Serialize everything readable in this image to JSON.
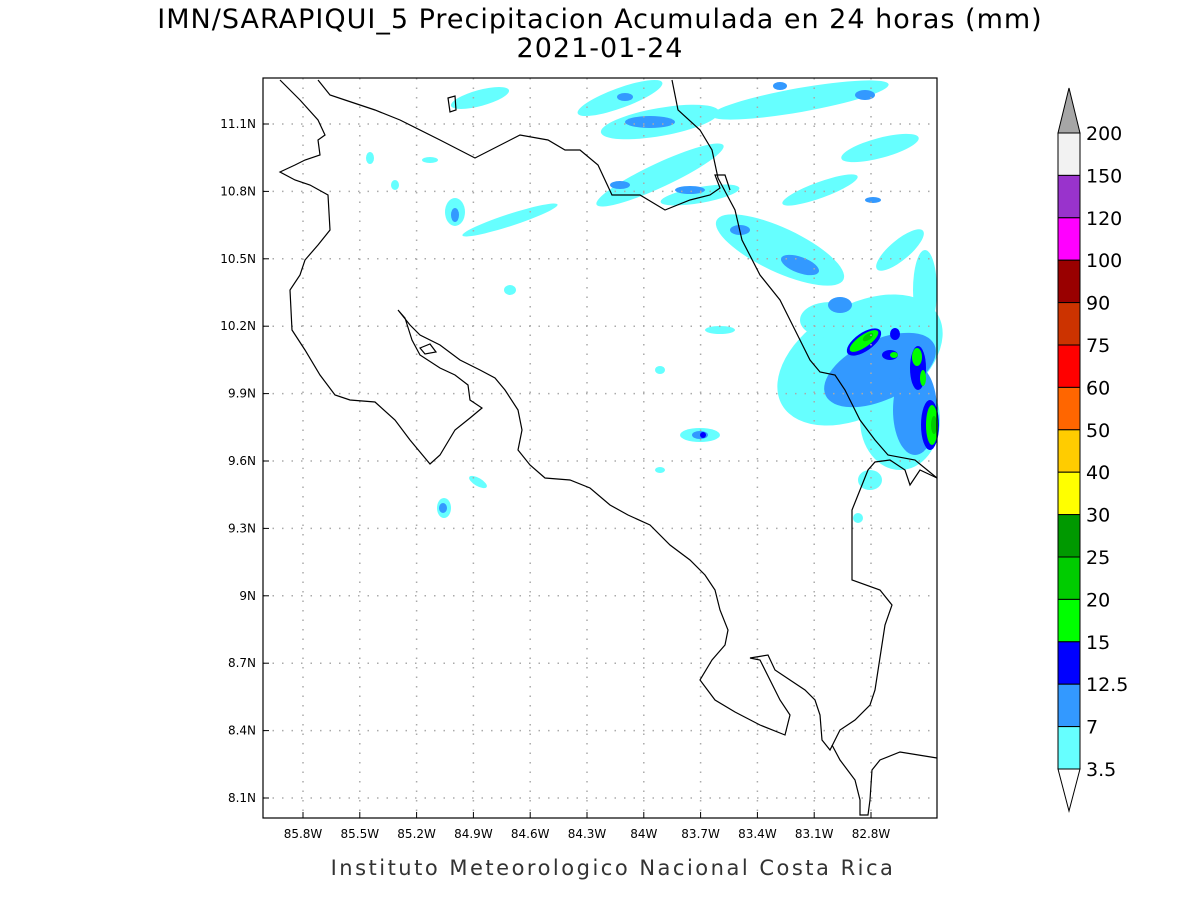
{
  "title": "IMN/SARAPIQUI_5 Precipitacion Acumulada en 24 horas (mm)",
  "date": "2021-01-24",
  "footer": "Instituto Meteorologico Nacional Costa Rica",
  "lon_ticks": [
    "85.8W",
    "85.5W",
    "85.2W",
    "84.9W",
    "84.6W",
    "84.3W",
    "84W",
    "83.7W",
    "83.4W",
    "83.1W",
    "82.8W"
  ],
  "lat_ticks": [
    "11.1N",
    "10.8N",
    "10.5N",
    "10.2N",
    "9.9N",
    "9.6N",
    "9.3N",
    "9N",
    "8.7N",
    "8.4N",
    "8.1N"
  ],
  "colorbar": {
    "levels": [
      "200",
      "150",
      "120",
      "100",
      "90",
      "75",
      "60",
      "50",
      "40",
      "30",
      "25",
      "20",
      "15",
      "12.5",
      "7",
      "3.5"
    ],
    "colors": [
      "#f2f2f2",
      "#9933cc",
      "#ff00ff",
      "#990000",
      "#cc3300",
      "#ff0000",
      "#ff6600",
      "#ffcc00",
      "#ffff00",
      "#009900",
      "#00cc00",
      "#00ff00",
      "#0000ff",
      "#3399ff",
      "#66ffff"
    ],
    "over_color": "#a6a6a6",
    "under_color": "#ffffff"
  }
}
